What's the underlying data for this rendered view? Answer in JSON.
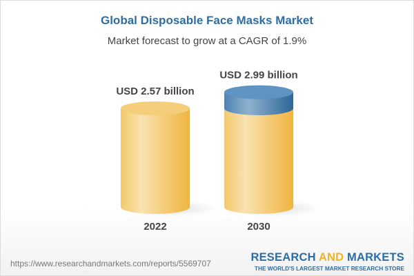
{
  "title": "Global Disposable Face Masks Market",
  "subtitle": "Market forecast to grow at a CAGR of 1.9%",
  "chart_data": {
    "type": "bar",
    "style": "3d-cylinder",
    "categories": [
      "2022",
      "2030"
    ],
    "values": [
      2.57,
      2.99
    ],
    "data_labels": [
      "USD 2.57 billion",
      "USD 2.99 billion"
    ],
    "unit": "USD billion",
    "colors": {
      "base": "#f2c35e",
      "growth": "#5b8fbd"
    }
  },
  "footer": {
    "url": "https://www.researchandmarkets.com/reports/5569707",
    "logo_part1": "RESEARCH ",
    "logo_part2": "AND",
    "logo_part3": " MARKETS",
    "tagline": "THE WORLD'S LARGEST MARKET RESEARCH STORE"
  }
}
